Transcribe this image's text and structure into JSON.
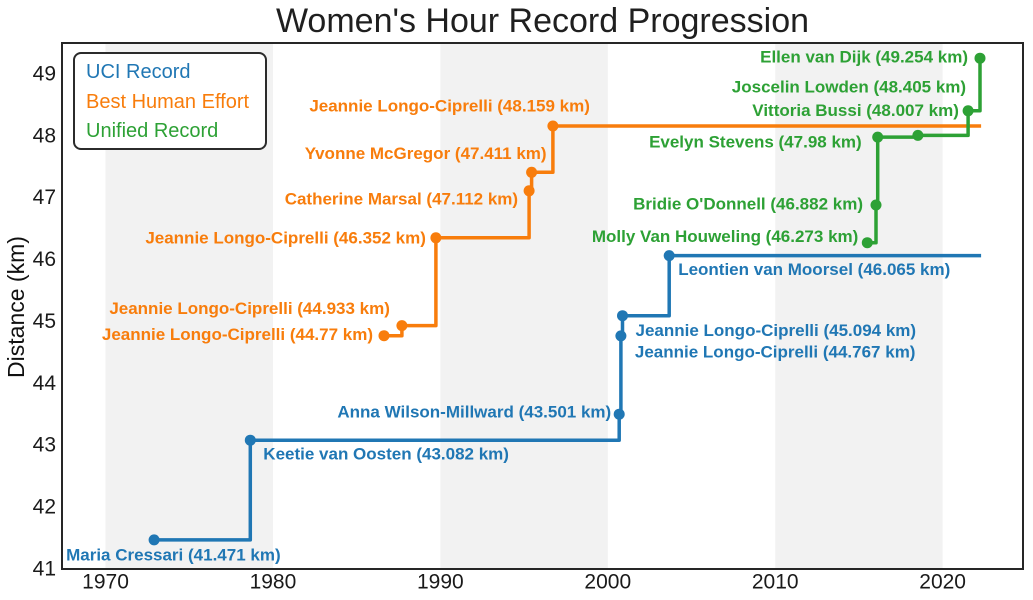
{
  "title": "Women's Hour Record Progression",
  "legend": {
    "items": [
      {
        "label": "UCI Record",
        "color": "#2077b4"
      },
      {
        "label": "Best Human Effort",
        "color": "#f87d0c"
      },
      {
        "label": "Unified Record",
        "color": "#2da135"
      }
    ]
  },
  "chart_data": {
    "type": "line",
    "subtype": "step-post",
    "title": "Women's Hour Record Progression",
    "xlabel": "",
    "ylabel": "Distance (km)",
    "xlim": [
      1967.4,
      2024.8
    ],
    "ylim": [
      41,
      49.5
    ],
    "xticks": [
      1970,
      1980,
      1990,
      2000,
      2010,
      2020
    ],
    "yticks": [
      41,
      42,
      43,
      44,
      45,
      46,
      47,
      48,
      49
    ],
    "grid": false,
    "legend_position": "upper left",
    "background_bands_decades": [
      [
        1970,
        1980
      ],
      [
        1990,
        2000
      ],
      [
        2010,
        2020
      ]
    ],
    "band_color": "#f2f2f2",
    "last_data_year": 2022.3,
    "tick_color": "#1a1a1a",
    "frame_color": "#262626",
    "series": [
      {
        "name": "UCI Record",
        "color": "#2077b4",
        "extend_to_last_year": true,
        "points": [
          {
            "year": 1972.9,
            "km": 41.471,
            "label": "Maria Cressari (41.471 km)",
            "ha": "start",
            "dx": -88,
            "dy": 15
          },
          {
            "year": 1978.65,
            "km": 43.082,
            "label": "Keetie van Oosten (43.082 km)",
            "ha": "start",
            "dx": 13,
            "dy": 14
          },
          {
            "year": 2000.68,
            "km": 43.501,
            "label": "Anna Wilson-Millward (43.501 km)",
            "ha": "end",
            "dx": -8,
            "dy": -2
          },
          {
            "year": 2000.78,
            "km": 44.767,
            "label": "Jeannie Longo-Ciprelli (44.767 km)",
            "ha": "start",
            "dx": 14,
            "dy": 16
          },
          {
            "year": 2000.88,
            "km": 45.094,
            "label": "Jeannie Longo-Ciprelli (45.094 km)",
            "ha": "start",
            "dx": 13,
            "dy": 15
          },
          {
            "year": 2003.67,
            "km": 46.065,
            "label": "Leontien van Moorsel (46.065 km)",
            "ha": "start",
            "dx": 9,
            "dy": 14
          }
        ]
      },
      {
        "name": "Best Human Effort",
        "color": "#f87d0c",
        "extend_to_last_year": true,
        "points": [
          {
            "year": 1986.63,
            "km": 44.77,
            "label": "Jeannie Longo-Ciprelli (44.77 km)",
            "ha": "end",
            "dx": -11,
            "dy": -1
          },
          {
            "year": 1987.7,
            "km": 44.933,
            "label": "Jeannie Longo-Ciprelli (44.933 km)",
            "ha": "end",
            "dx": -12,
            "dy": -17
          },
          {
            "year": 1989.73,
            "km": 46.352,
            "label": "Jeannie Longo-Ciprelli (46.352 km)",
            "ha": "end",
            "dx": -10,
            "dy": 0
          },
          {
            "year": 1995.3,
            "km": 47.112,
            "label": "Catherine Marsal (47.112 km)",
            "ha": "end",
            "dx": -11,
            "dy": 8
          },
          {
            "year": 1995.45,
            "km": 47.411,
            "label": "Yvonne McGregor (47.411 km)",
            "ha": "end",
            "dx": 15,
            "dy": -19
          },
          {
            "year": 1996.72,
            "km": 48.159,
            "label": "Jeannie Longo-Ciprelli (48.159 km)",
            "ha": "end",
            "dx": 37,
            "dy": -20
          }
        ]
      },
      {
        "name": "Unified Record",
        "color": "#2da135",
        "extend_to_last_year": false,
        "points": [
          {
            "year": 2015.5,
            "km": 46.273,
            "label": "Molly Van Houweling (46.273 km)",
            "ha": "end",
            "dx": -9,
            "dy": -6
          },
          {
            "year": 2016.02,
            "km": 46.882,
            "label": "Bridie O'Donnell (46.882 km)",
            "ha": "end",
            "dx": -13,
            "dy": -1
          },
          {
            "year": 2016.12,
            "km": 47.98,
            "label": "Evelyn Stevens (47.98 km)",
            "ha": "end",
            "dx": -16,
            "dy": 5
          },
          {
            "year": 2018.52,
            "km": 48.007,
            "label": "Vittoria Bussi (48.007 km)",
            "ha": "end",
            "dx": 41,
            "dy": -25
          },
          {
            "year": 2021.52,
            "km": 48.405,
            "label": "Joscelin Lowden (48.405 km)",
            "ha": "end",
            "dx": -2,
            "dy": -24
          },
          {
            "year": 2022.23,
            "km": 49.254,
            "label": "Ellen van Dijk (49.254 km)",
            "ha": "end",
            "dx": -12,
            "dy": -1
          }
        ]
      }
    ]
  }
}
